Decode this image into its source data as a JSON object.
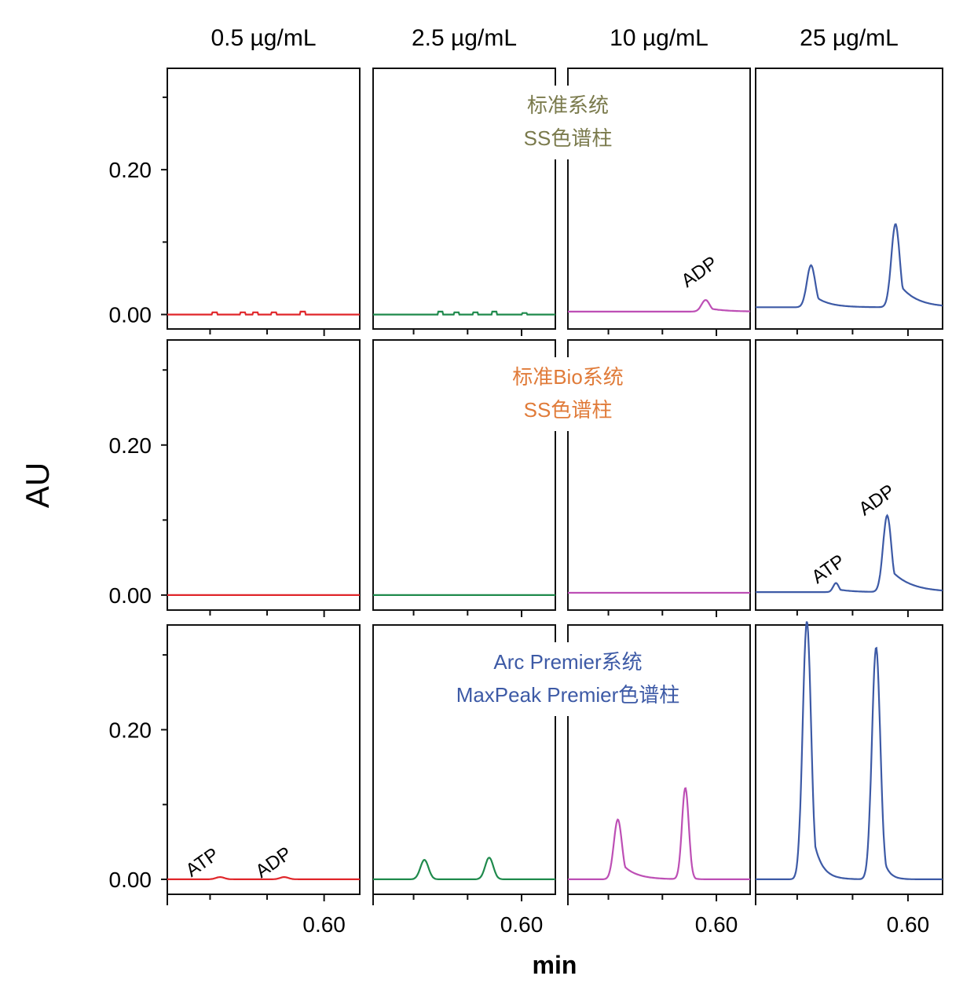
{
  "figure": {
    "y_axis_title": "AU",
    "x_axis_title": "min"
  },
  "chart_data": {
    "type": "line",
    "columns": [
      "0.5 µg/mL",
      "2.5 µg/mL",
      "10 µg/mL",
      "25 µg/mL"
    ],
    "rows": [
      {
        "label_lines": [
          "标准系统",
          "SS色谱柱"
        ],
        "label_color": "#7a7a4c"
      },
      {
        "label_lines": [
          "标准Bio系统",
          "SS色谱柱"
        ],
        "label_color": "#e07b39"
      },
      {
        "label_lines": [
          "Arc Premier系统",
          "MaxPeak Premier色谱柱"
        ],
        "label_color": "#3d5aa6"
      }
    ],
    "column_colors": [
      "#e0262a",
      "#1f8a4c",
      "#bd4fb5",
      "#3d5aa6"
    ],
    "y_ticks": [
      {
        "value": 0.0,
        "label": "0.00"
      },
      {
        "value": 0.2,
        "label": "0.20"
      }
    ],
    "y_minor_ticks": [
      0.1,
      0.3
    ],
    "ylim": [
      -0.02,
      0.34
    ],
    "x_ticks": [
      {
        "value": 0.6,
        "label": "0.60"
      }
    ],
    "x_minor_ticks": [
      0.56,
      0.52
    ],
    "xlim": [
      0.49,
      0.625
    ],
    "annotations": [
      {
        "row": 0,
        "col": 2,
        "text": "ADP",
        "x": 0.59,
        "y": 0.052
      },
      {
        "row": 1,
        "col": 3,
        "text": "ATP",
        "x": 0.545,
        "y": 0.028
      },
      {
        "row": 1,
        "col": 3,
        "text": "ADP",
        "x": 0.58,
        "y": 0.12
      },
      {
        "row": 2,
        "col": 0,
        "text": "ATP",
        "x": 0.517,
        "y": 0.016
      },
      {
        "row": 2,
        "col": 0,
        "text": "ADP",
        "x": 0.567,
        "y": 0.016
      }
    ],
    "series": [
      {
        "row": 0,
        "col": 0,
        "baseline": 0.0,
        "noise": [
          [
            0.523,
            0.003
          ],
          [
            0.543,
            0.003
          ],
          [
            0.552,
            0.003
          ],
          [
            0.565,
            0.003
          ],
          [
            0.585,
            0.004
          ]
        ],
        "peaks": []
      },
      {
        "row": 0,
        "col": 1,
        "baseline": 0.0,
        "noise": [
          [
            0.54,
            0.004
          ],
          [
            0.552,
            0.003
          ],
          [
            0.566,
            0.003
          ],
          [
            0.58,
            0.004
          ],
          [
            0.602,
            0.002
          ]
        ],
        "peaks": []
      },
      {
        "row": 0,
        "col": 2,
        "baseline": 0.004,
        "noise": [],
        "peaks": [
          {
            "center": 0.592,
            "height": 0.016,
            "width": 0.003,
            "tail": 0.012
          }
        ]
      },
      {
        "row": 0,
        "col": 3,
        "baseline": 0.01,
        "noise": [],
        "peaks": [
          {
            "center": 0.53,
            "height": 0.058,
            "width": 0.003,
            "tail": 0.01
          },
          {
            "center": 0.591,
            "height": 0.115,
            "width": 0.003,
            "tail": 0.012
          }
        ]
      },
      {
        "row": 1,
        "col": 0,
        "baseline": 0.0,
        "noise": [],
        "peaks": []
      },
      {
        "row": 1,
        "col": 1,
        "baseline": 0.0,
        "noise": [],
        "peaks": []
      },
      {
        "row": 1,
        "col": 2,
        "baseline": 0.003,
        "noise": [],
        "peaks": []
      },
      {
        "row": 1,
        "col": 3,
        "baseline": 0.004,
        "noise": [],
        "peaks": [
          {
            "center": 0.548,
            "height": 0.012,
            "width": 0.002,
            "tail": 0.01
          },
          {
            "center": 0.585,
            "height": 0.102,
            "width": 0.003,
            "tail": 0.014
          }
        ]
      },
      {
        "row": 2,
        "col": 0,
        "baseline": 0.0,
        "noise": [],
        "peaks": [
          {
            "center": 0.527,
            "height": 0.003,
            "width": 0.003,
            "tail": 0.004
          },
          {
            "center": 0.572,
            "height": 0.003,
            "width": 0.003,
            "tail": 0.004
          }
        ]
      },
      {
        "row": 2,
        "col": 1,
        "baseline": 0.0,
        "noise": [],
        "peaks": [
          {
            "center": 0.528,
            "height": 0.026,
            "width": 0.003,
            "tail": 0.002
          },
          {
            "center": 0.576,
            "height": 0.029,
            "width": 0.003,
            "tail": 0.002
          }
        ]
      },
      {
        "row": 2,
        "col": 2,
        "baseline": 0.0,
        "noise": [],
        "peaks": [
          {
            "center": 0.527,
            "height": 0.08,
            "width": 0.003,
            "tail": 0.01
          },
          {
            "center": 0.577,
            "height": 0.122,
            "width": 0.0025,
            "tail": 0.002
          }
        ]
      },
      {
        "row": 2,
        "col": 3,
        "baseline": 0.0,
        "noise": [],
        "peaks": [
          {
            "center": 0.527,
            "height": 0.345,
            "width": 0.003,
            "tail": 0.006
          },
          {
            "center": 0.577,
            "height": 0.31,
            "width": 0.003,
            "tail": 0.004
          }
        ]
      }
    ]
  }
}
